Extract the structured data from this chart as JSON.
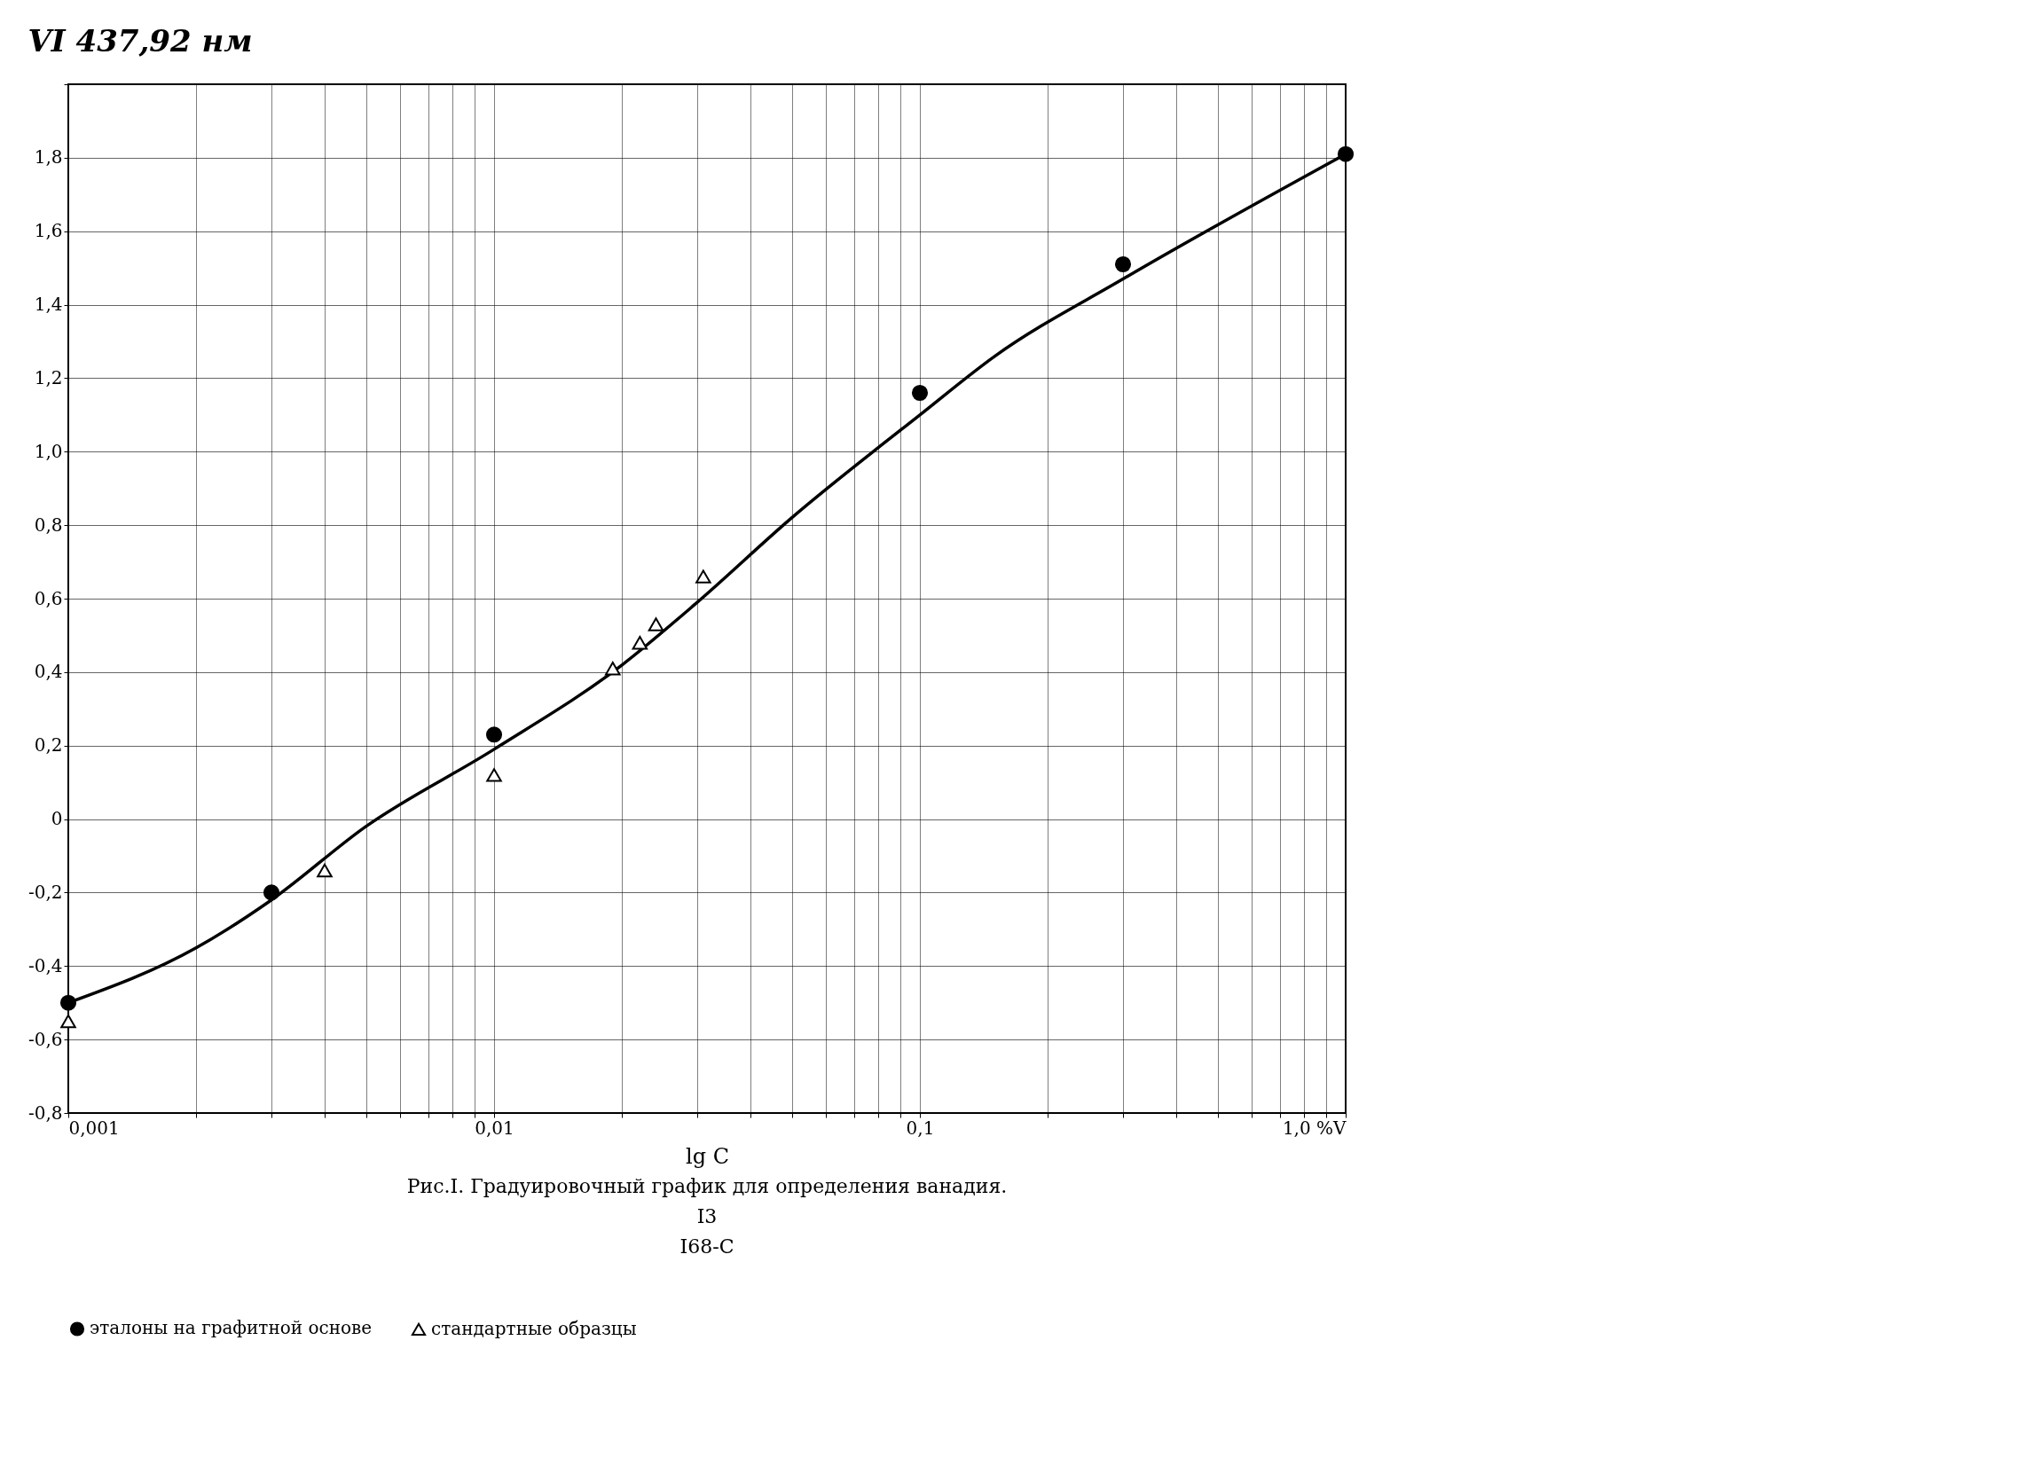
{
  "chart_data": {
    "type": "line",
    "title": "VI 437,92 нм",
    "xlabel": "lg C",
    "annotations": [
      "Рис.I. Градуировочный график для определения ванадия.",
      "I3",
      "I68-С"
    ],
    "log": "x",
    "grid": true,
    "legend": "bottom",
    "xlim": [
      0.001,
      1.0
    ],
    "xticks": [
      {
        "value": 0.001,
        "label": "0,001"
      },
      {
        "value": 0.002,
        "label": null
      },
      {
        "value": 0.003,
        "label": null
      },
      {
        "value": 0.004,
        "label": null
      },
      {
        "value": 0.005,
        "label": null
      },
      {
        "value": 0.006,
        "label": null
      },
      {
        "value": 0.007,
        "label": null
      },
      {
        "value": 0.008,
        "label": null
      },
      {
        "value": 0.009,
        "label": null
      },
      {
        "value": 0.01,
        "label": "0,01"
      },
      {
        "value": 0.02,
        "label": null
      },
      {
        "value": 0.03,
        "label": null
      },
      {
        "value": 0.04,
        "label": null
      },
      {
        "value": 0.05,
        "label": null
      },
      {
        "value": 0.06,
        "label": null
      },
      {
        "value": 0.07,
        "label": null
      },
      {
        "value": 0.08,
        "label": null
      },
      {
        "value": 0.09,
        "label": null
      },
      {
        "value": 0.1,
        "label": "0,1"
      },
      {
        "value": 0.2,
        "label": null
      },
      {
        "value": 0.3,
        "label": null
      },
      {
        "value": 0.4,
        "label": null
      },
      {
        "value": 0.5,
        "label": null
      },
      {
        "value": 0.6,
        "label": null
      },
      {
        "value": 0.7,
        "label": null
      },
      {
        "value": 0.8,
        "label": null
      },
      {
        "value": 0.9,
        "label": null
      },
      {
        "value": 1.0,
        "label": "1,0 %V"
      }
    ],
    "ylim": [
      -0.8,
      2.0
    ],
    "yticks": [
      {
        "value": -0.8,
        "label": "-0,8"
      },
      {
        "value": -0.6,
        "label": "-0,6"
      },
      {
        "value": -0.4,
        "label": "-0,4"
      },
      {
        "value": -0.2,
        "label": "-0,2"
      },
      0,
      {
        "value": 0.2,
        "label": "0,2"
      },
      {
        "value": 0.4,
        "label": "0,4"
      },
      {
        "value": 0.6,
        "label": "0,6"
      },
      {
        "value": 0.8,
        "label": "0,8"
      },
      {
        "value": 1.0,
        "label": "1,0"
      },
      {
        "value": 1.2,
        "label": "1,2"
      },
      {
        "value": 1.4,
        "label": "1,4"
      },
      {
        "value": 1.6,
        "label": "1,6"
      },
      {
        "value": 1.8,
        "label": "1,8"
      },
      {
        "value": 2.0,
        "label": null
      }
    ],
    "series": [
      {
        "color": "#000000",
        "marker": "none",
        "x": [
          0.001,
          0.002,
          0.003,
          0.005,
          0.01,
          0.02,
          0.03,
          0.05,
          0.1,
          0.15,
          0.3,
          1.0
        ],
        "values": [
          -0.5,
          -0.35,
          -0.22,
          -0.02,
          0.19,
          0.42,
          0.59,
          0.82,
          1.1,
          1.26,
          1.47,
          1.81
        ]
      },
      {
        "type": "scatter",
        "name": "эталоны на графитной основе",
        "color": "#000000",
        "marker": "circle",
        "x": [
          0.001,
          0.003,
          0.01,
          0.1,
          0.3,
          1.0
        ],
        "values": [
          -0.5,
          -0.2,
          0.23,
          1.16,
          1.51,
          1.81
        ]
      },
      {
        "type": "scatter",
        "name": "стандартные образцы",
        "color": "#000000",
        "marker": "triangle",
        "x": [
          0.001,
          0.004,
          0.01,
          0.019,
          0.022,
          0.024,
          0.031
        ],
        "values": [
          -0.55,
          -0.14,
          0.12,
          0.41,
          0.48,
          0.53,
          0.66
        ]
      }
    ]
  }
}
